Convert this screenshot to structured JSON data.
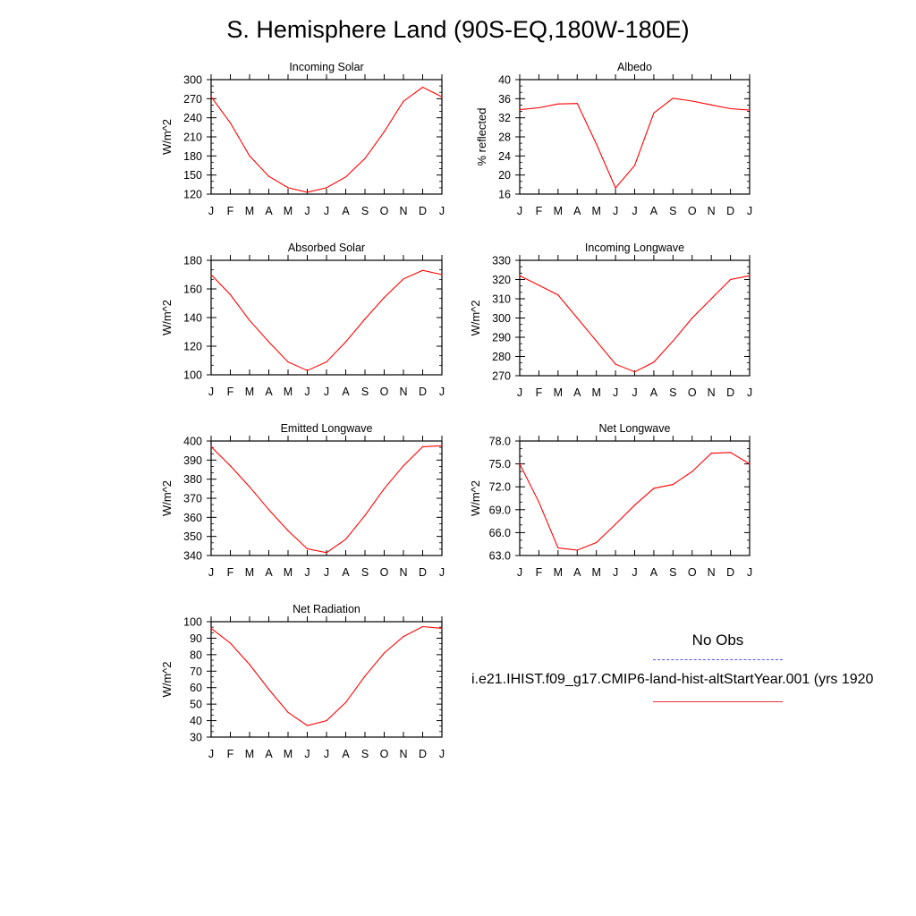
{
  "title": "S. Hemisphere Land (90S-EQ,180W-180E)",
  "colors": {
    "model": "#ff0000",
    "obs": "#5555ee",
    "axis": "#000000"
  },
  "legend": {
    "obs_label": "No Obs",
    "model_label": "i.e21.IHIST.f09_g17.CMIP6-land-hist-altStartYear.001 (yrs 1920"
  },
  "chart_data": [
    {
      "type": "line",
      "title": "Incoming Solar",
      "ylabel": "W/m^2",
      "categories": [
        "J",
        "F",
        "M",
        "A",
        "M",
        "J",
        "J",
        "A",
        "S",
        "O",
        "N",
        "D",
        "J"
      ],
      "ylim": [
        120,
        300
      ],
      "yticks": [
        "120",
        "150",
        "180",
        "210",
        "240",
        "270",
        "300"
      ],
      "series": [
        {
          "values": [
            273,
            232,
            180,
            148,
            130,
            123,
            130,
            147,
            176,
            218,
            266,
            288,
            273
          ]
        }
      ]
    },
    {
      "type": "line",
      "title": "Albedo",
      "ylabel": "% reflected",
      "categories": [
        "J",
        "F",
        "M",
        "A",
        "M",
        "J",
        "J",
        "A",
        "S",
        "O",
        "N",
        "D",
        "J"
      ],
      "ylim": [
        16,
        40
      ],
      "yticks": [
        "16",
        "20",
        "24",
        "28",
        "32",
        "36",
        "40"
      ],
      "series": [
        {
          "values": [
            33.7,
            34.1,
            34.9,
            35.0,
            26.5,
            17.3,
            22.0,
            33.0,
            36.1,
            35.5,
            34.7,
            33.9,
            33.6
          ]
        }
      ]
    },
    {
      "type": "line",
      "title": "Absorbed Solar",
      "ylabel": "W/m^2",
      "categories": [
        "J",
        "F",
        "M",
        "A",
        "M",
        "J",
        "J",
        "A",
        "S",
        "O",
        "N",
        "D",
        "J"
      ],
      "ylim": [
        100,
        180
      ],
      "yticks": [
        "100",
        "120",
        "140",
        "160",
        "180"
      ],
      "series": [
        {
          "values": [
            170,
            156,
            138,
            123,
            109,
            103,
            109,
            123,
            139,
            154,
            167,
            173,
            170
          ]
        }
      ]
    },
    {
      "type": "line",
      "title": "Incoming Longwave",
      "ylabel": "W/m^2",
      "categories": [
        "J",
        "F",
        "M",
        "A",
        "M",
        "J",
        "J",
        "A",
        "S",
        "O",
        "N",
        "D",
        "J"
      ],
      "ylim": [
        270,
        330
      ],
      "yticks": [
        "270",
        "280",
        "290",
        "300",
        "310",
        "320",
        "330"
      ],
      "series": [
        {
          "values": [
            322,
            317,
            312,
            300,
            288,
            276,
            272,
            277,
            288,
            300,
            310,
            320,
            322
          ]
        }
      ]
    },
    {
      "type": "line",
      "title": "Emitted Longwave",
      "ylabel": "W/m^2",
      "categories": [
        "J",
        "F",
        "M",
        "A",
        "M",
        "J",
        "J",
        "A",
        "S",
        "O",
        "N",
        "D",
        "J"
      ],
      "ylim": [
        340,
        400
      ],
      "yticks": [
        "340",
        "350",
        "360",
        "370",
        "380",
        "390",
        "400"
      ],
      "series": [
        {
          "values": [
            397,
            387,
            376,
            364,
            353,
            343.5,
            341.5,
            348.5,
            361,
            375,
            387,
            397,
            397.5
          ]
        }
      ]
    },
    {
      "type": "line",
      "title": "Net Longwave",
      "ylabel": "W/m^2",
      "categories": [
        "J",
        "F",
        "M",
        "A",
        "M",
        "J",
        "J",
        "A",
        "S",
        "O",
        "N",
        "D",
        "J"
      ],
      "ylim": [
        63,
        78
      ],
      "yticks": [
        "63.0",
        "66.0",
        "69.0",
        "72.0",
        "75.0",
        "78.0"
      ],
      "series": [
        {
          "values": [
            75.0,
            70.0,
            64.0,
            63.7,
            64.7,
            67.1,
            69.6,
            71.8,
            72.3,
            74.0,
            76.4,
            76.5,
            75.0
          ]
        }
      ]
    },
    {
      "type": "line",
      "title": "Net Radiation",
      "ylabel": "W/m^2",
      "categories": [
        "J",
        "F",
        "M",
        "A",
        "M",
        "J",
        "J",
        "A",
        "S",
        "O",
        "N",
        "D",
        "J"
      ],
      "ylim": [
        30,
        100
      ],
      "yticks": [
        "30",
        "40",
        "50",
        "60",
        "70",
        "80",
        "90",
        "100"
      ],
      "series": [
        {
          "values": [
            96,
            87,
            74,
            59,
            45,
            37,
            40,
            51,
            67,
            81,
            91,
            97,
            96
          ]
        }
      ]
    }
  ]
}
